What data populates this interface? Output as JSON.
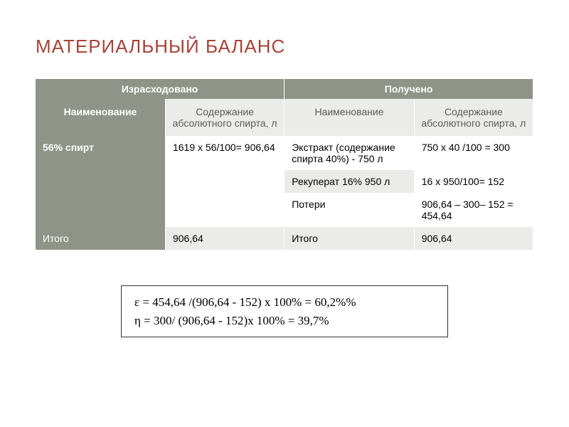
{
  "title": "МАТЕРИАЛЬНЫЙ БАЛАНС",
  "table": {
    "group_headers": {
      "spent": "Израсходовано",
      "received": "Получено"
    },
    "sub_headers": {
      "name": "Наименование",
      "content": "Содержание абсолютного спирта, л"
    },
    "rows": {
      "spirit_label": "56% спирт",
      "spirit_calc": "1619 x 56/100= 906,64",
      "extract_label": "Экстракт (содержание спирта 40%) -   750 л",
      "extract_calc": "750 x 40 /100 = 300",
      "recuperat_label": "Рекуперат 16% 950 л",
      "recuperat_calc": "16 x 950/100= 152",
      "losses_label": "Потери",
      "losses_calc": "906,64 – 300– 152 = 454,64",
      "total_label": "Итого",
      "total_spent": "906,64",
      "total_received": "906,64"
    }
  },
  "formulas": {
    "line1": "ε = 454,64 /(906,64 - 152) x 100% = 60,2%%",
    "line2": "η = 300/ (906,64 - 152)x 100% = 39,7%"
  },
  "colors": {
    "title": "#a84238",
    "header_bg": "#8f9488",
    "alt_bg": "#ebecea",
    "text_light": "#ffffff",
    "text_dark": "#5a5a5a"
  }
}
